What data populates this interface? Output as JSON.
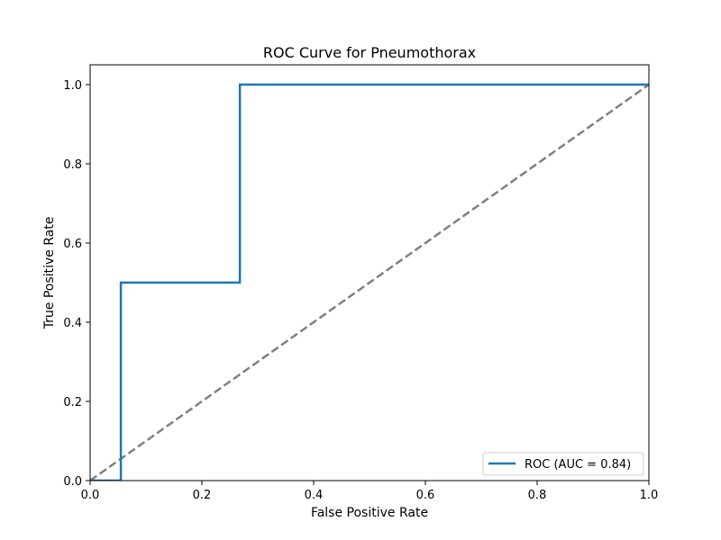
{
  "chart_data": {
    "type": "line",
    "title": "ROC Curve for Pneumothorax",
    "xlabel": "False Positive Rate",
    "ylabel": "True Positive Rate",
    "xlim": [
      0.0,
      1.0
    ],
    "ylim": [
      0.0,
      1.05
    ],
    "xticks": [
      0.0,
      0.2,
      0.4,
      0.6,
      0.8,
      1.0
    ],
    "yticks": [
      0.0,
      0.2,
      0.4,
      0.6,
      0.8,
      1.0
    ],
    "xtick_labels": [
      "0.0",
      "0.2",
      "0.4",
      "0.6",
      "0.8",
      "1.0"
    ],
    "ytick_labels": [
      "0.0",
      "0.2",
      "0.4",
      "0.6",
      "0.8",
      "1.0"
    ],
    "grid": false,
    "legend_position": "lower-right",
    "series": [
      {
        "name": "ROC (AUC = 0.84)",
        "color": "#1f77b4",
        "line_style": "solid",
        "x": [
          0.0,
          0.055,
          0.055,
          0.268,
          0.268,
          1.0
        ],
        "y": [
          0.0,
          0.0,
          0.5,
          0.5,
          1.0,
          1.0
        ]
      },
      {
        "color": "#808080",
        "line_style": "dashed",
        "x": [
          0.0,
          1.0
        ],
        "y": [
          0.0,
          1.0
        ]
      }
    ]
  }
}
